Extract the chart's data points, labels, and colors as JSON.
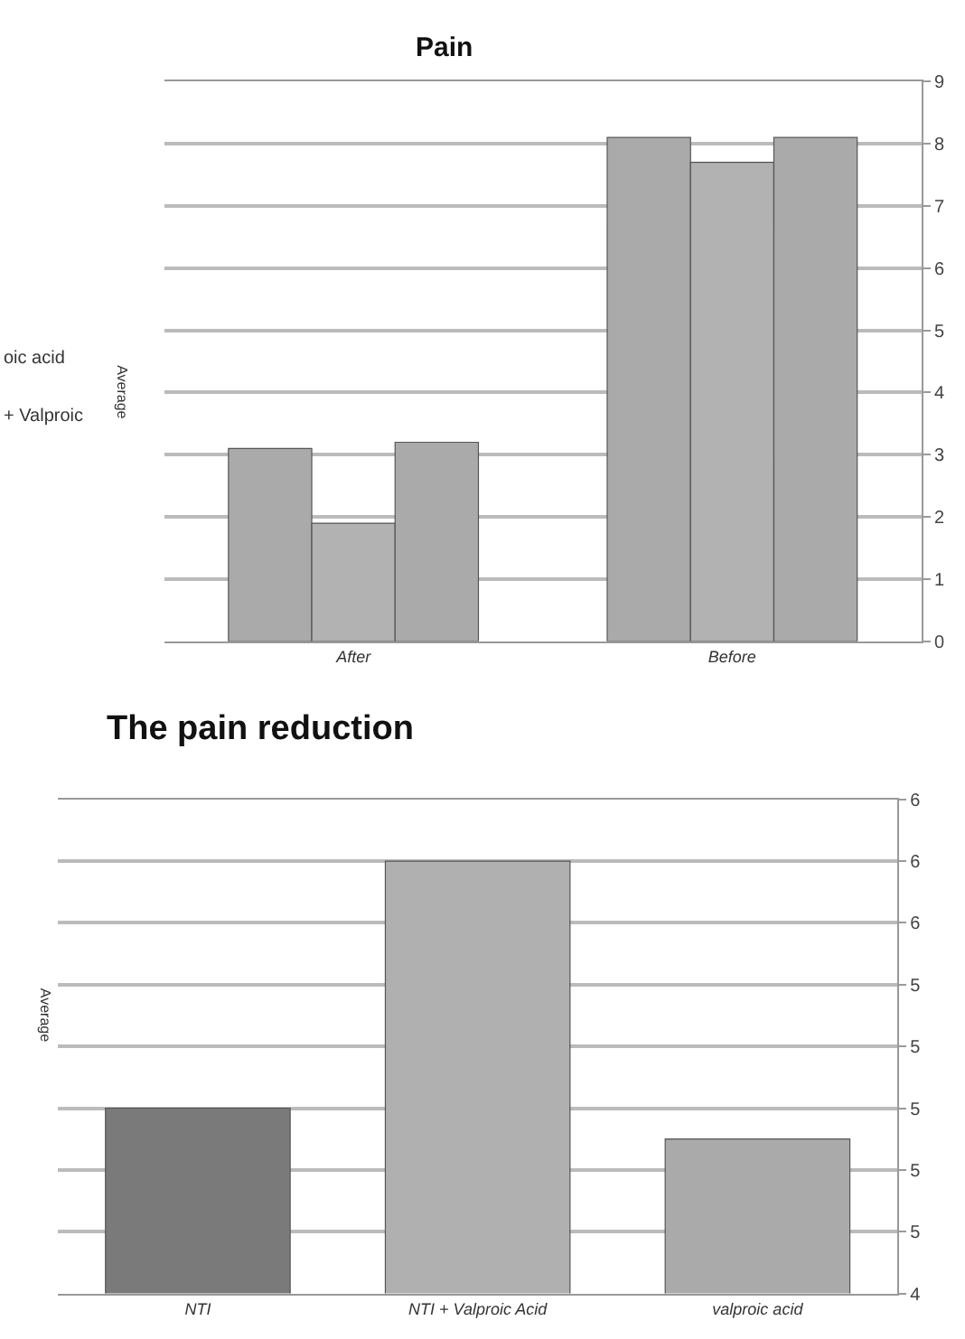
{
  "chart_data": [
    {
      "type": "bar",
      "title": "Pain",
      "ylabel": "Average",
      "categories": [
        "After",
        "Before"
      ],
      "series": [
        {
          "color": "#aaaaaa",
          "values": [
            3.1,
            8.1
          ]
        },
        {
          "color": "#b2b2b2",
          "values": [
            1.9,
            7.7
          ]
        },
        {
          "color": "#aaaaaa",
          "values": [
            3.2,
            8.1
          ]
        }
      ],
      "annotations": [
        "oic acid",
        "+ Valproic"
      ],
      "ylim": [
        0,
        9
      ],
      "yticks": [
        0,
        1,
        2,
        3,
        4,
        5,
        6,
        7,
        8,
        9
      ],
      "grid": "y"
    },
    {
      "type": "bar",
      "title": "The pain reduction",
      "ylabel": "Average",
      "categories": [
        "NTI",
        "NTI + Valproic Acid",
        "valproic acid"
      ],
      "values": [
        5.0,
        5.8,
        4.9
      ],
      "colors": [
        "#7a7a7a",
        "#b0b0b0",
        "#aaaaaa"
      ],
      "ylim": [
        4.4,
        6.0
      ],
      "yticks": [
        {
          "value": 4.4,
          "label": "4"
        },
        {
          "value": 4.6,
          "label": "5"
        },
        {
          "value": 4.8,
          "label": "5"
        },
        {
          "value": 5.0,
          "label": "5"
        },
        {
          "value": 5.2,
          "label": "5"
        },
        {
          "value": 5.4,
          "label": "5"
        },
        {
          "value": 5.6,
          "label": "6"
        },
        {
          "value": 5.8,
          "label": "6"
        },
        {
          "value": 6.0,
          "label": "6"
        }
      ],
      "grid": "y"
    }
  ]
}
